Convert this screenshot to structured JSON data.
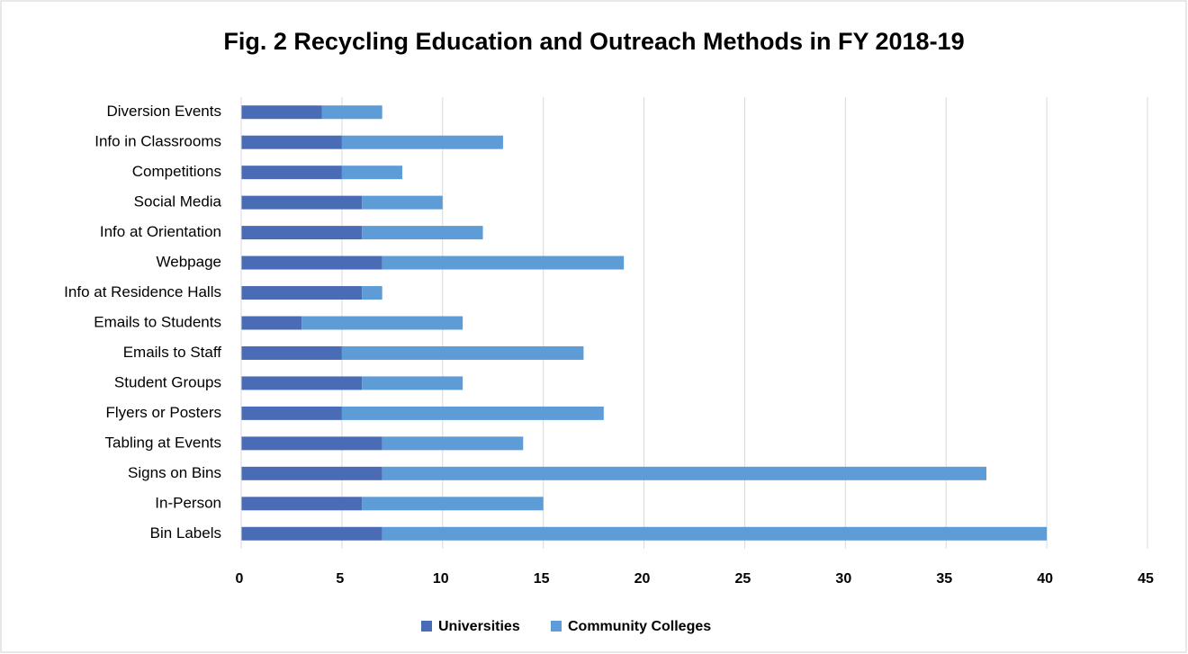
{
  "chart_data": {
    "type": "stacked-barh",
    "title": "Fig. 2 Recycling Education and Outreach Methods in FY 2018-19",
    "categories": [
      "Diversion Events",
      "Info in Classrooms",
      "Competitions",
      "Social Media",
      "Info at Orientation",
      "Webpage",
      "Info at Residence Halls",
      "Emails to Students",
      "Emails to Staff",
      "Student Groups",
      "Flyers or Posters",
      "Tabling at Events",
      "Signs on Bins",
      "In-Person",
      "Bin Labels"
    ],
    "series": [
      {
        "name": "Universities",
        "color": "#4a6cb6",
        "values": [
          4,
          5,
          5,
          6,
          6,
          7,
          6,
          3,
          5,
          6,
          5,
          7,
          7,
          6,
          7
        ]
      },
      {
        "name": "Community Colleges",
        "color": "#5d9cd6",
        "values": [
          3,
          8,
          3,
          4,
          6,
          12,
          1,
          8,
          12,
          5,
          13,
          7,
          30,
          9,
          33
        ]
      }
    ],
    "xlim": [
      0,
      45
    ],
    "xticks": [
      0,
      5,
      10,
      15,
      20,
      25,
      30,
      35,
      40,
      45
    ],
    "grid": true,
    "legend": "bottom"
  }
}
